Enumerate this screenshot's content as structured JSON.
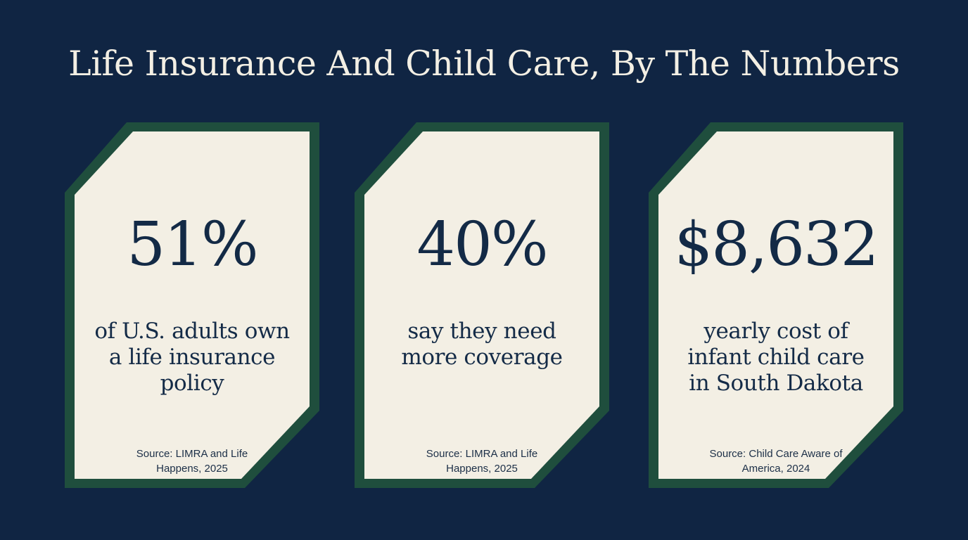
{
  "page": {
    "title": "Life Insurance And Child Care, By The Numbers"
  },
  "colors": {
    "background": "#102543",
    "card_fill": "#f3efe4",
    "card_border": "#1f4e3d",
    "text": "#142b47",
    "title_text": "#f3efe4"
  },
  "stats": [
    {
      "value": "51%",
      "label": "of U.S. adults own a life insurance policy",
      "source": "Source: LIMRA and Life Happens, 2025"
    },
    {
      "value": "40%",
      "label": "say they need more coverage",
      "source": "Source: LIMRA and Life Happens, 2025"
    },
    {
      "value": "$8,632",
      "label": "yearly cost of infant child care in South Dakota",
      "source": "Source: Child Care Aware of America, 2024"
    }
  ]
}
